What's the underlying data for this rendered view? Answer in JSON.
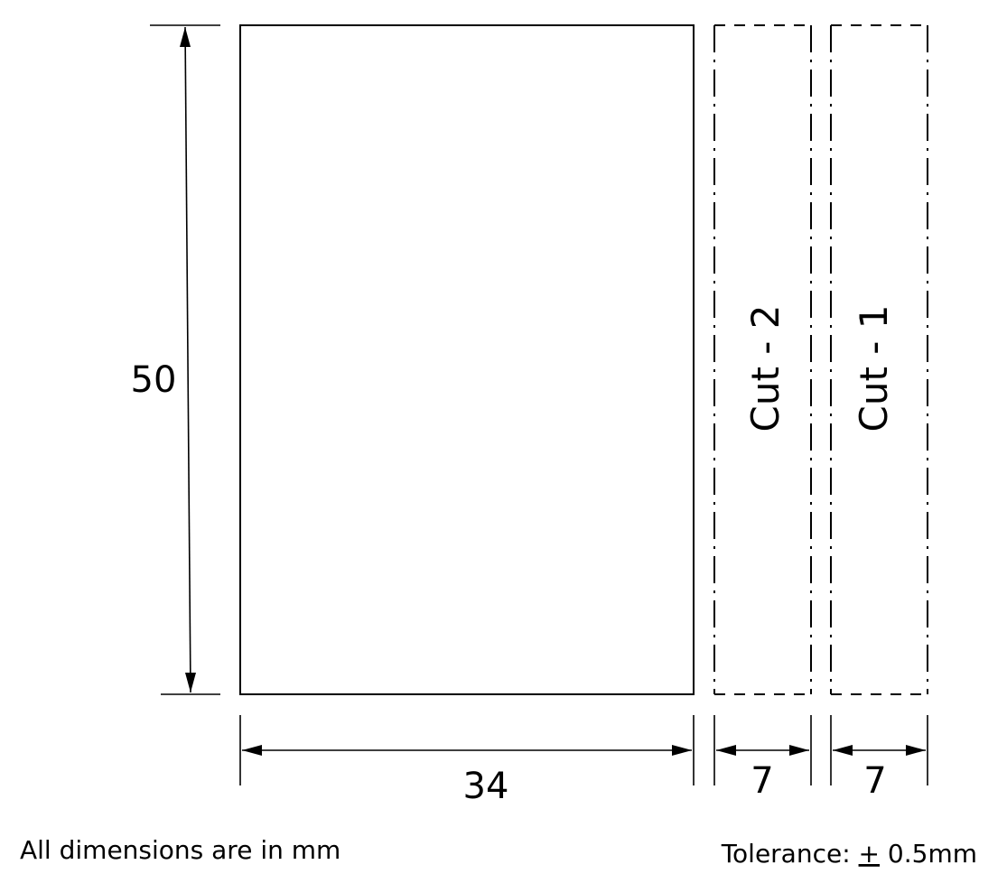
{
  "dimensions": {
    "height": "50",
    "width_main": "34",
    "width_cut_2": "7",
    "width_cut_1": "7"
  },
  "cut_labels": {
    "cut_2": "Cut - 2",
    "cut_1": "Cut - 1"
  },
  "notes": {
    "units": "All dimensions are in mm",
    "tolerance_prefix": "Tolerance: ",
    "tolerance_symbol": "+",
    "tolerance_value": " 0.5mm"
  }
}
